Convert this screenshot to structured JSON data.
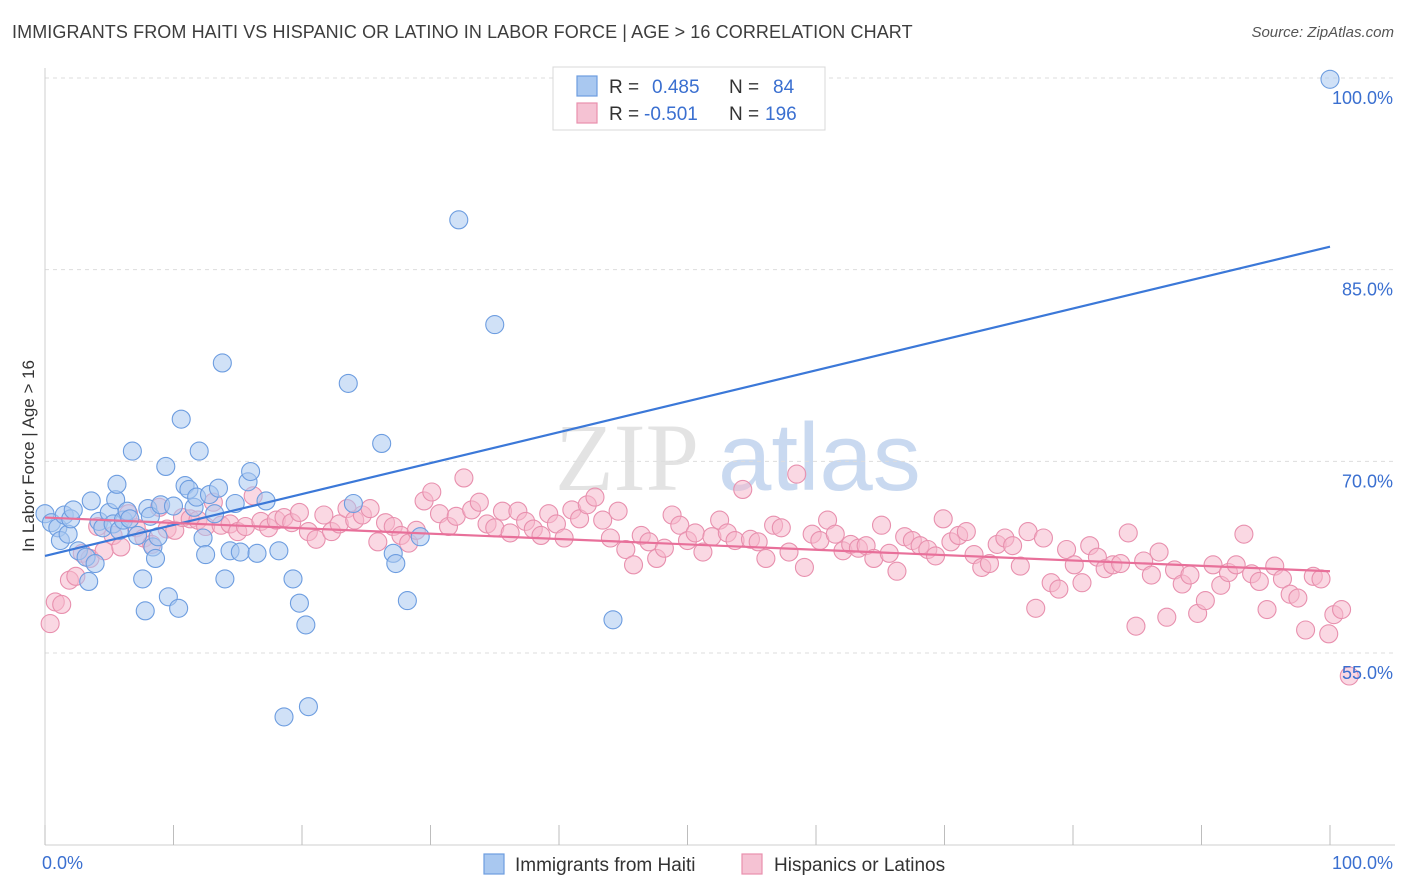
{
  "title": "IMMIGRANTS FROM HAITI VS HISPANIC OR LATINO IN LABOR FORCE | AGE > 16 CORRELATION CHART",
  "source": "Source: ZipAtlas.com",
  "watermark": {
    "zip": "ZIP",
    "atlas": "atlas"
  },
  "colors": {
    "blue": "#3b78d8",
    "blue_fill": "#a9c8f0",
    "pink": "#e8709a",
    "pink_fill": "#f5b8cc",
    "grid": "#dddddd",
    "axis_text": "#3a6fd0"
  },
  "legend": {
    "rows": [
      {
        "r_label": "R =",
        "r_value": "0.485",
        "n_label": "N =",
        "n_value": "84",
        "series": "blue"
      },
      {
        "r_label": "R =",
        "r_value": "-0.501",
        "n_label": "N =",
        "n_value": "196",
        "series": "pink"
      }
    ]
  },
  "bottom_legend": [
    "Immigrants from Haiti",
    "Hispanics or Latinos"
  ],
  "chart_data": {
    "type": "scatter",
    "title": "IMMIGRANTS FROM HAITI VS HISPANIC OR LATINO IN LABOR FORCE | AGE > 16 CORRELATION CHART",
    "xlabel": "",
    "ylabel": "In Labor Force | Age > 16",
    "xlim": [
      0,
      100
    ],
    "ylim": [
      40,
      101
    ],
    "x_tick_labels": [
      "0.0%",
      "100.0%"
    ],
    "y_ticks": [
      55,
      70,
      85,
      100
    ],
    "y_tick_labels": [
      "55.0%",
      "70.0%",
      "85.0%",
      "100.0%"
    ],
    "grid": true,
    "legend_position": "top-center",
    "series": [
      {
        "name": "Immigrants from Haiti",
        "color": "#3b78d8",
        "trend": {
          "x": [
            0,
            100
          ],
          "y": [
            62.6,
            86.8
          ]
        },
        "points": [
          [
            0.0,
            65.9
          ],
          [
            0.5,
            65.2
          ],
          [
            1.0,
            64.8
          ],
          [
            1.2,
            63.8
          ],
          [
            1.5,
            65.8
          ],
          [
            1.8,
            64.3
          ],
          [
            2.0,
            65.5
          ],
          [
            2.2,
            66.2
          ],
          [
            2.6,
            63.0
          ],
          [
            3.2,
            62.5
          ],
          [
            3.4,
            60.6
          ],
          [
            3.6,
            66.9
          ],
          [
            3.9,
            62.0
          ],
          [
            4.2,
            65.3
          ],
          [
            4.5,
            64.8
          ],
          [
            5.0,
            66.0
          ],
          [
            5.3,
            65.1
          ],
          [
            5.5,
            67.0
          ],
          [
            5.6,
            68.2
          ],
          [
            5.8,
            64.6
          ],
          [
            6.1,
            65.4
          ],
          [
            6.4,
            66.1
          ],
          [
            6.6,
            65.5
          ],
          [
            6.8,
            70.8
          ],
          [
            7.2,
            64.2
          ],
          [
            7.6,
            60.8
          ],
          [
            7.8,
            58.3
          ],
          [
            8.0,
            66.3
          ],
          [
            8.2,
            65.7
          ],
          [
            8.4,
            63.3
          ],
          [
            8.6,
            62.4
          ],
          [
            8.8,
            64.1
          ],
          [
            9.0,
            66.6
          ],
          [
            9.4,
            69.6
          ],
          [
            9.6,
            59.4
          ],
          [
            10.0,
            66.5
          ],
          [
            10.4,
            58.5
          ],
          [
            10.6,
            73.3
          ],
          [
            10.9,
            68.1
          ],
          [
            11.2,
            67.8
          ],
          [
            11.6,
            66.4
          ],
          [
            11.8,
            67.2
          ],
          [
            12.0,
            70.8
          ],
          [
            12.3,
            64.0
          ],
          [
            12.5,
            62.7
          ],
          [
            12.8,
            67.4
          ],
          [
            13.2,
            65.9
          ],
          [
            13.5,
            67.9
          ],
          [
            13.8,
            77.7
          ],
          [
            14.0,
            60.8
          ],
          [
            14.4,
            63.0
          ],
          [
            14.8,
            66.7
          ],
          [
            15.2,
            62.9
          ],
          [
            15.8,
            68.4
          ],
          [
            16.0,
            69.2
          ],
          [
            16.5,
            62.8
          ],
          [
            17.2,
            66.9
          ],
          [
            18.2,
            63.0
          ],
          [
            18.6,
            50.0
          ],
          [
            19.3,
            60.8
          ],
          [
            19.8,
            58.9
          ],
          [
            20.3,
            57.2
          ],
          [
            20.5,
            50.8
          ],
          [
            23.6,
            76.1
          ],
          [
            24.0,
            66.7
          ],
          [
            26.2,
            71.4
          ],
          [
            27.1,
            62.8
          ],
          [
            27.3,
            62.0
          ],
          [
            28.2,
            59.1
          ],
          [
            29.2,
            64.1
          ],
          [
            32.2,
            88.9
          ],
          [
            35.0,
            80.7
          ],
          [
            44.2,
            57.6
          ],
          [
            100.0,
            99.9
          ]
        ]
      },
      {
        "name": "Hispanics or Latinos",
        "color": "#e8709a",
        "trend": {
          "x": [
            0,
            100
          ],
          "y": [
            65.6,
            61.4
          ]
        },
        "points": [
          [
            0.4,
            57.3
          ],
          [
            0.8,
            59.0
          ],
          [
            1.3,
            58.8
          ],
          [
            1.9,
            60.7
          ],
          [
            2.4,
            61.0
          ],
          [
            2.9,
            62.8
          ],
          [
            3.5,
            62.4
          ],
          [
            4.1,
            64.9
          ],
          [
            4.6,
            63.0
          ],
          [
            5.3,
            64.2
          ],
          [
            5.9,
            63.3
          ],
          [
            6.5,
            65.9
          ],
          [
            7.1,
            64.8
          ],
          [
            7.7,
            64.0
          ],
          [
            8.3,
            63.5
          ],
          [
            8.9,
            66.4
          ],
          [
            9.5,
            64.7
          ],
          [
            10.1,
            64.6
          ],
          [
            10.7,
            65.6
          ],
          [
            11.3,
            65.5
          ],
          [
            11.9,
            65.4
          ],
          [
            12.5,
            64.9
          ],
          [
            13.1,
            66.8
          ],
          [
            13.7,
            65.0
          ],
          [
            14.4,
            65.1
          ],
          [
            15.0,
            64.5
          ],
          [
            15.6,
            64.9
          ],
          [
            16.2,
            67.3
          ],
          [
            16.8,
            65.3
          ],
          [
            17.4,
            64.8
          ],
          [
            18.0,
            65.4
          ],
          [
            18.6,
            65.6
          ],
          [
            19.2,
            65.2
          ],
          [
            19.8,
            66.0
          ],
          [
            20.5,
            64.5
          ],
          [
            21.1,
            63.9
          ],
          [
            21.7,
            65.8
          ],
          [
            22.3,
            64.5
          ],
          [
            22.9,
            65.1
          ],
          [
            23.5,
            66.3
          ],
          [
            24.1,
            65.4
          ],
          [
            24.7,
            65.8
          ],
          [
            25.3,
            66.3
          ],
          [
            25.9,
            63.7
          ],
          [
            26.5,
            65.2
          ],
          [
            27.1,
            64.9
          ],
          [
            27.7,
            64.2
          ],
          [
            28.3,
            63.6
          ],
          [
            28.9,
            64.6
          ],
          [
            29.5,
            66.9
          ],
          [
            30.1,
            67.6
          ],
          [
            30.7,
            65.9
          ],
          [
            31.4,
            64.9
          ],
          [
            32.0,
            65.7
          ],
          [
            32.6,
            68.7
          ],
          [
            33.2,
            66.2
          ],
          [
            33.8,
            66.8
          ],
          [
            34.4,
            65.1
          ],
          [
            35.0,
            64.8
          ],
          [
            35.6,
            66.1
          ],
          [
            36.2,
            64.4
          ],
          [
            36.8,
            66.1
          ],
          [
            37.4,
            65.3
          ],
          [
            38.0,
            64.7
          ],
          [
            38.6,
            64.2
          ],
          [
            39.2,
            65.9
          ],
          [
            39.8,
            65.1
          ],
          [
            40.4,
            64.0
          ],
          [
            41.0,
            66.2
          ],
          [
            41.6,
            65.5
          ],
          [
            42.2,
            66.6
          ],
          [
            42.8,
            67.2
          ],
          [
            43.4,
            65.4
          ],
          [
            44.0,
            64.0
          ],
          [
            44.6,
            66.1
          ],
          [
            45.2,
            63.1
          ],
          [
            45.8,
            61.9
          ],
          [
            46.4,
            64.2
          ],
          [
            47.0,
            63.7
          ],
          [
            47.6,
            62.4
          ],
          [
            48.2,
            63.2
          ],
          [
            48.8,
            65.8
          ],
          [
            49.4,
            65.0
          ],
          [
            50.0,
            63.8
          ],
          [
            50.6,
            64.4
          ],
          [
            51.2,
            62.9
          ],
          [
            51.9,
            64.1
          ],
          [
            52.5,
            65.4
          ],
          [
            53.1,
            64.4
          ],
          [
            53.7,
            63.8
          ],
          [
            54.3,
            67.8
          ],
          [
            54.9,
            63.9
          ],
          [
            55.5,
            63.7
          ],
          [
            56.1,
            62.4
          ],
          [
            56.7,
            65.0
          ],
          [
            57.3,
            64.8
          ],
          [
            57.9,
            62.9
          ],
          [
            58.5,
            69.0
          ],
          [
            59.1,
            61.7
          ],
          [
            59.7,
            64.3
          ],
          [
            60.3,
            63.8
          ],
          [
            60.9,
            65.4
          ],
          [
            61.5,
            64.3
          ],
          [
            62.1,
            63.0
          ],
          [
            62.7,
            63.5
          ],
          [
            63.3,
            63.2
          ],
          [
            63.9,
            63.4
          ],
          [
            64.5,
            62.4
          ],
          [
            65.1,
            65.0
          ],
          [
            65.7,
            62.8
          ],
          [
            66.3,
            61.4
          ],
          [
            66.9,
            64.1
          ],
          [
            67.5,
            63.8
          ],
          [
            68.1,
            63.4
          ],
          [
            68.7,
            63.1
          ],
          [
            69.3,
            62.6
          ],
          [
            69.9,
            65.5
          ],
          [
            70.5,
            63.7
          ],
          [
            71.1,
            64.2
          ],
          [
            71.7,
            64.5
          ],
          [
            72.3,
            62.7
          ],
          [
            72.9,
            61.7
          ],
          [
            73.5,
            62.0
          ],
          [
            74.1,
            63.5
          ],
          [
            74.7,
            64.0
          ],
          [
            75.3,
            63.4
          ],
          [
            75.9,
            61.8
          ],
          [
            76.5,
            64.5
          ],
          [
            77.1,
            58.5
          ],
          [
            77.7,
            64.0
          ],
          [
            78.3,
            60.5
          ],
          [
            78.9,
            60.0
          ],
          [
            79.5,
            63.1
          ],
          [
            80.1,
            61.9
          ],
          [
            80.7,
            60.5
          ],
          [
            81.3,
            63.4
          ],
          [
            81.9,
            62.5
          ],
          [
            82.5,
            61.6
          ],
          [
            83.1,
            61.9
          ],
          [
            83.7,
            62.0
          ],
          [
            84.3,
            64.4
          ],
          [
            84.9,
            57.1
          ],
          [
            85.5,
            62.2
          ],
          [
            86.1,
            61.1
          ],
          [
            86.7,
            62.9
          ],
          [
            87.3,
            57.8
          ],
          [
            87.9,
            61.5
          ],
          [
            88.5,
            60.4
          ],
          [
            89.1,
            61.1
          ],
          [
            89.7,
            58.1
          ],
          [
            90.3,
            59.1
          ],
          [
            90.9,
            61.9
          ],
          [
            91.5,
            60.3
          ],
          [
            92.1,
            61.3
          ],
          [
            92.7,
            61.9
          ],
          [
            93.3,
            64.3
          ],
          [
            93.9,
            61.2
          ],
          [
            94.5,
            60.6
          ],
          [
            95.1,
            58.4
          ],
          [
            95.7,
            61.8
          ],
          [
            96.3,
            60.8
          ],
          [
            96.9,
            59.6
          ],
          [
            97.5,
            59.3
          ],
          [
            98.1,
            56.8
          ],
          [
            98.7,
            61.0
          ],
          [
            99.3,
            60.8
          ],
          [
            99.9,
            56.5
          ],
          [
            100.3,
            58.0
          ],
          [
            100.9,
            58.4
          ],
          [
            101.5,
            53.2
          ]
        ]
      }
    ]
  }
}
